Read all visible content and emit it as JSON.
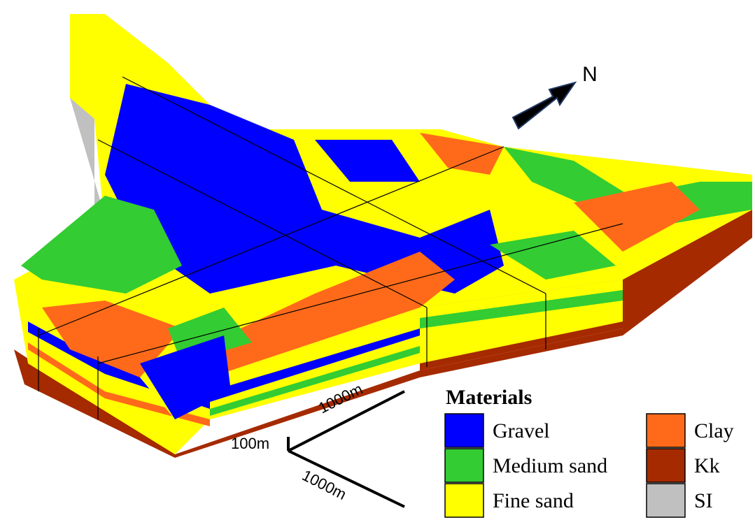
{
  "north_label": "N",
  "scale": {
    "x_label": "1000m",
    "z_label": "100m",
    "y_label": "1000m"
  },
  "legend": {
    "title": "Materials",
    "items": [
      {
        "label": "Gravel",
        "color": "#0000ff"
      },
      {
        "label": "Medium sand",
        "color": "#33cc33"
      },
      {
        "label": "Fine sand",
        "color": "#ffff00"
      },
      {
        "label": "Clay",
        "color": "#ff6a1a"
      },
      {
        "label": "Kk",
        "color": "#a52a00"
      },
      {
        "label": "SI",
        "color": "#c0c0c0"
      }
    ]
  }
}
